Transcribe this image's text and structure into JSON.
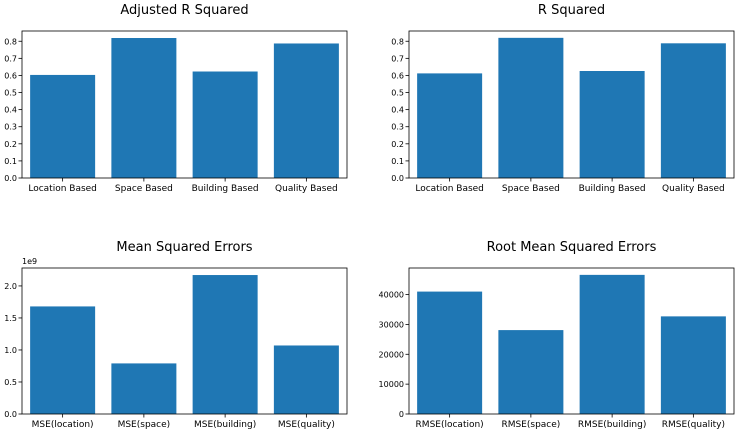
{
  "chart_data": [
    {
      "type": "bar",
      "title": "Adjusted R Squared",
      "categories": [
        "Location Based",
        "Space Based",
        "Building Based",
        "Quality Based"
      ],
      "values": [
        0.603,
        0.819,
        0.623,
        0.787
      ],
      "ylim": [
        0,
        0.86
      ],
      "yticks": [
        0.0,
        0.1,
        0.2,
        0.3,
        0.4,
        0.5,
        0.6,
        0.7,
        0.8
      ],
      "ytick_labels": [
        "0.0",
        "0.1",
        "0.2",
        "0.3",
        "0.4",
        "0.5",
        "0.6",
        "0.7",
        "0.8"
      ],
      "offset_label": "",
      "color": "#1f77b4",
      "grid": false,
      "xlabel": "",
      "ylabel": ""
    },
    {
      "type": "bar",
      "title": "R Squared",
      "categories": [
        "Location Based",
        "Space Based",
        "Building Based",
        "Quality Based"
      ],
      "values": [
        0.612,
        0.82,
        0.626,
        0.788
      ],
      "ylim": [
        0,
        0.86
      ],
      "yticks": [
        0.0,
        0.1,
        0.2,
        0.3,
        0.4,
        0.5,
        0.6,
        0.7,
        0.8
      ],
      "ytick_labels": [
        "0.0",
        "0.1",
        "0.2",
        "0.3",
        "0.4",
        "0.5",
        "0.6",
        "0.7",
        "0.8"
      ],
      "offset_label": "",
      "color": "#1f77b4",
      "grid": false,
      "xlabel": "",
      "ylabel": ""
    },
    {
      "type": "bar",
      "title": "Mean Squared Errors",
      "categories": [
        "MSE(location)",
        "MSE(space)",
        "MSE(building)",
        "MSE(quality)"
      ],
      "values": [
        1.68,
        0.79,
        2.17,
        1.07
      ],
      "ylim": [
        0,
        2.28
      ],
      "yticks": [
        0.0,
        0.5,
        1.0,
        1.5,
        2.0
      ],
      "ytick_labels": [
        "0.0",
        "0.5",
        "1.0",
        "1.5",
        "2.0"
      ],
      "offset_label": "1e9",
      "color": "#1f77b4",
      "grid": false,
      "xlabel": "",
      "ylabel": ""
    },
    {
      "type": "bar",
      "title": "Root Mean Squared Errors",
      "categories": [
        "RMSE(location)",
        "RMSE(space)",
        "RMSE(building)",
        "RMSE(quality)"
      ],
      "values": [
        41000,
        28100,
        46600,
        32700
      ],
      "ylim": [
        0,
        48900
      ],
      "yticks": [
        0,
        10000,
        20000,
        30000,
        40000
      ],
      "ytick_labels": [
        "0",
        "10000",
        "20000",
        "30000",
        "40000"
      ],
      "offset_label": "",
      "color": "#1f77b4",
      "grid": false,
      "xlabel": "",
      "ylabel": ""
    }
  ]
}
